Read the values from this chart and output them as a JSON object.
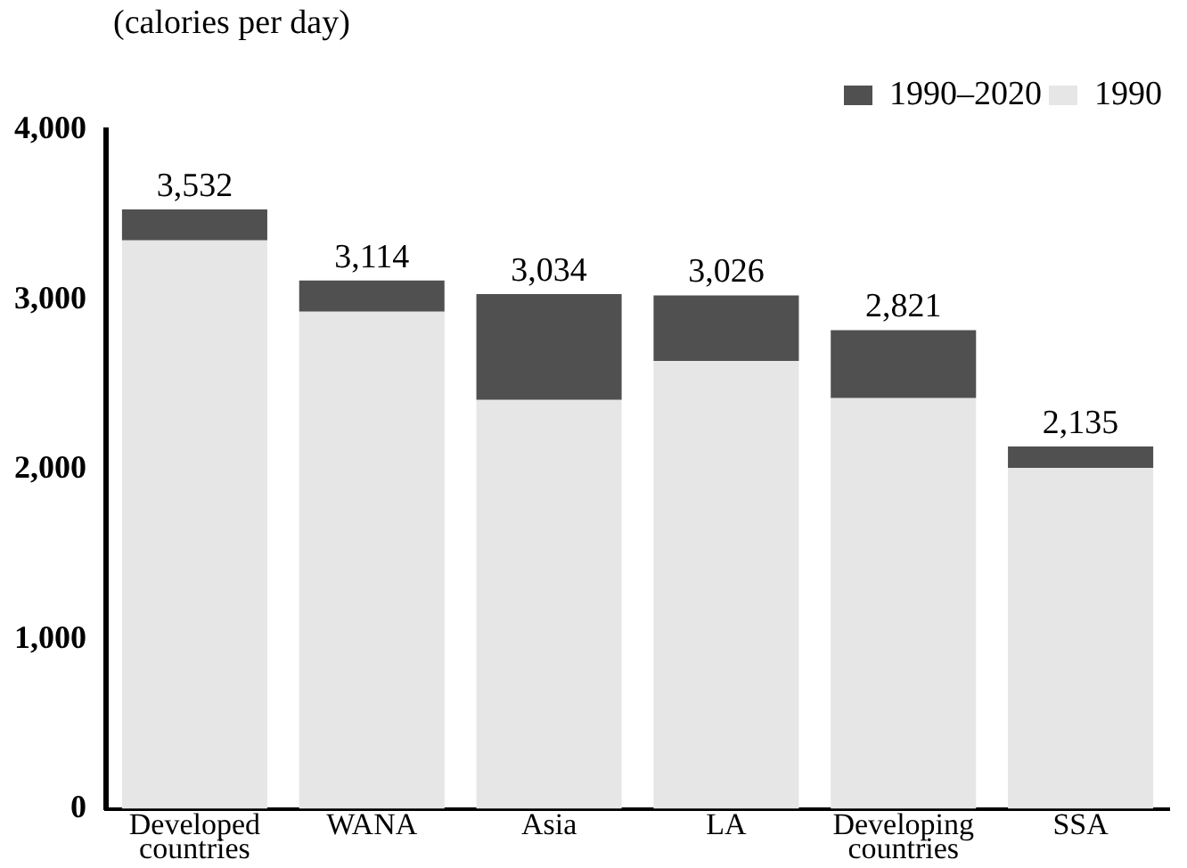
{
  "chart_data": {
    "type": "bar",
    "ylabel": "(calories per day)",
    "categories": [
      "Developed countries",
      "WANA",
      "Asia",
      "LA",
      "Developing countries",
      "SSA"
    ],
    "stacked": true,
    "series": [
      {
        "name": "1990",
        "color": "#e6e6e6",
        "values": [
          3350,
          2930,
          2410,
          2640,
          2420,
          2010
        ]
      },
      {
        "name": "1990–2020",
        "color": "#505050",
        "values": [
          182,
          184,
          624,
          386,
          401,
          125
        ]
      }
    ],
    "totals": [
      "3,532",
      "3,114",
      "3,034",
      "3,026",
      "2,821",
      "2,135"
    ],
    "ylim": [
      0,
      4000
    ],
    "yticks": [
      {
        "value": 0,
        "label": "0"
      },
      {
        "value": 1000,
        "label": "1,000"
      },
      {
        "value": 2000,
        "label": "2,000"
      },
      {
        "value": 3000,
        "label": "3,000"
      },
      {
        "value": 4000,
        "label": "4,000"
      }
    ],
    "grid": false,
    "legend": "top right"
  }
}
